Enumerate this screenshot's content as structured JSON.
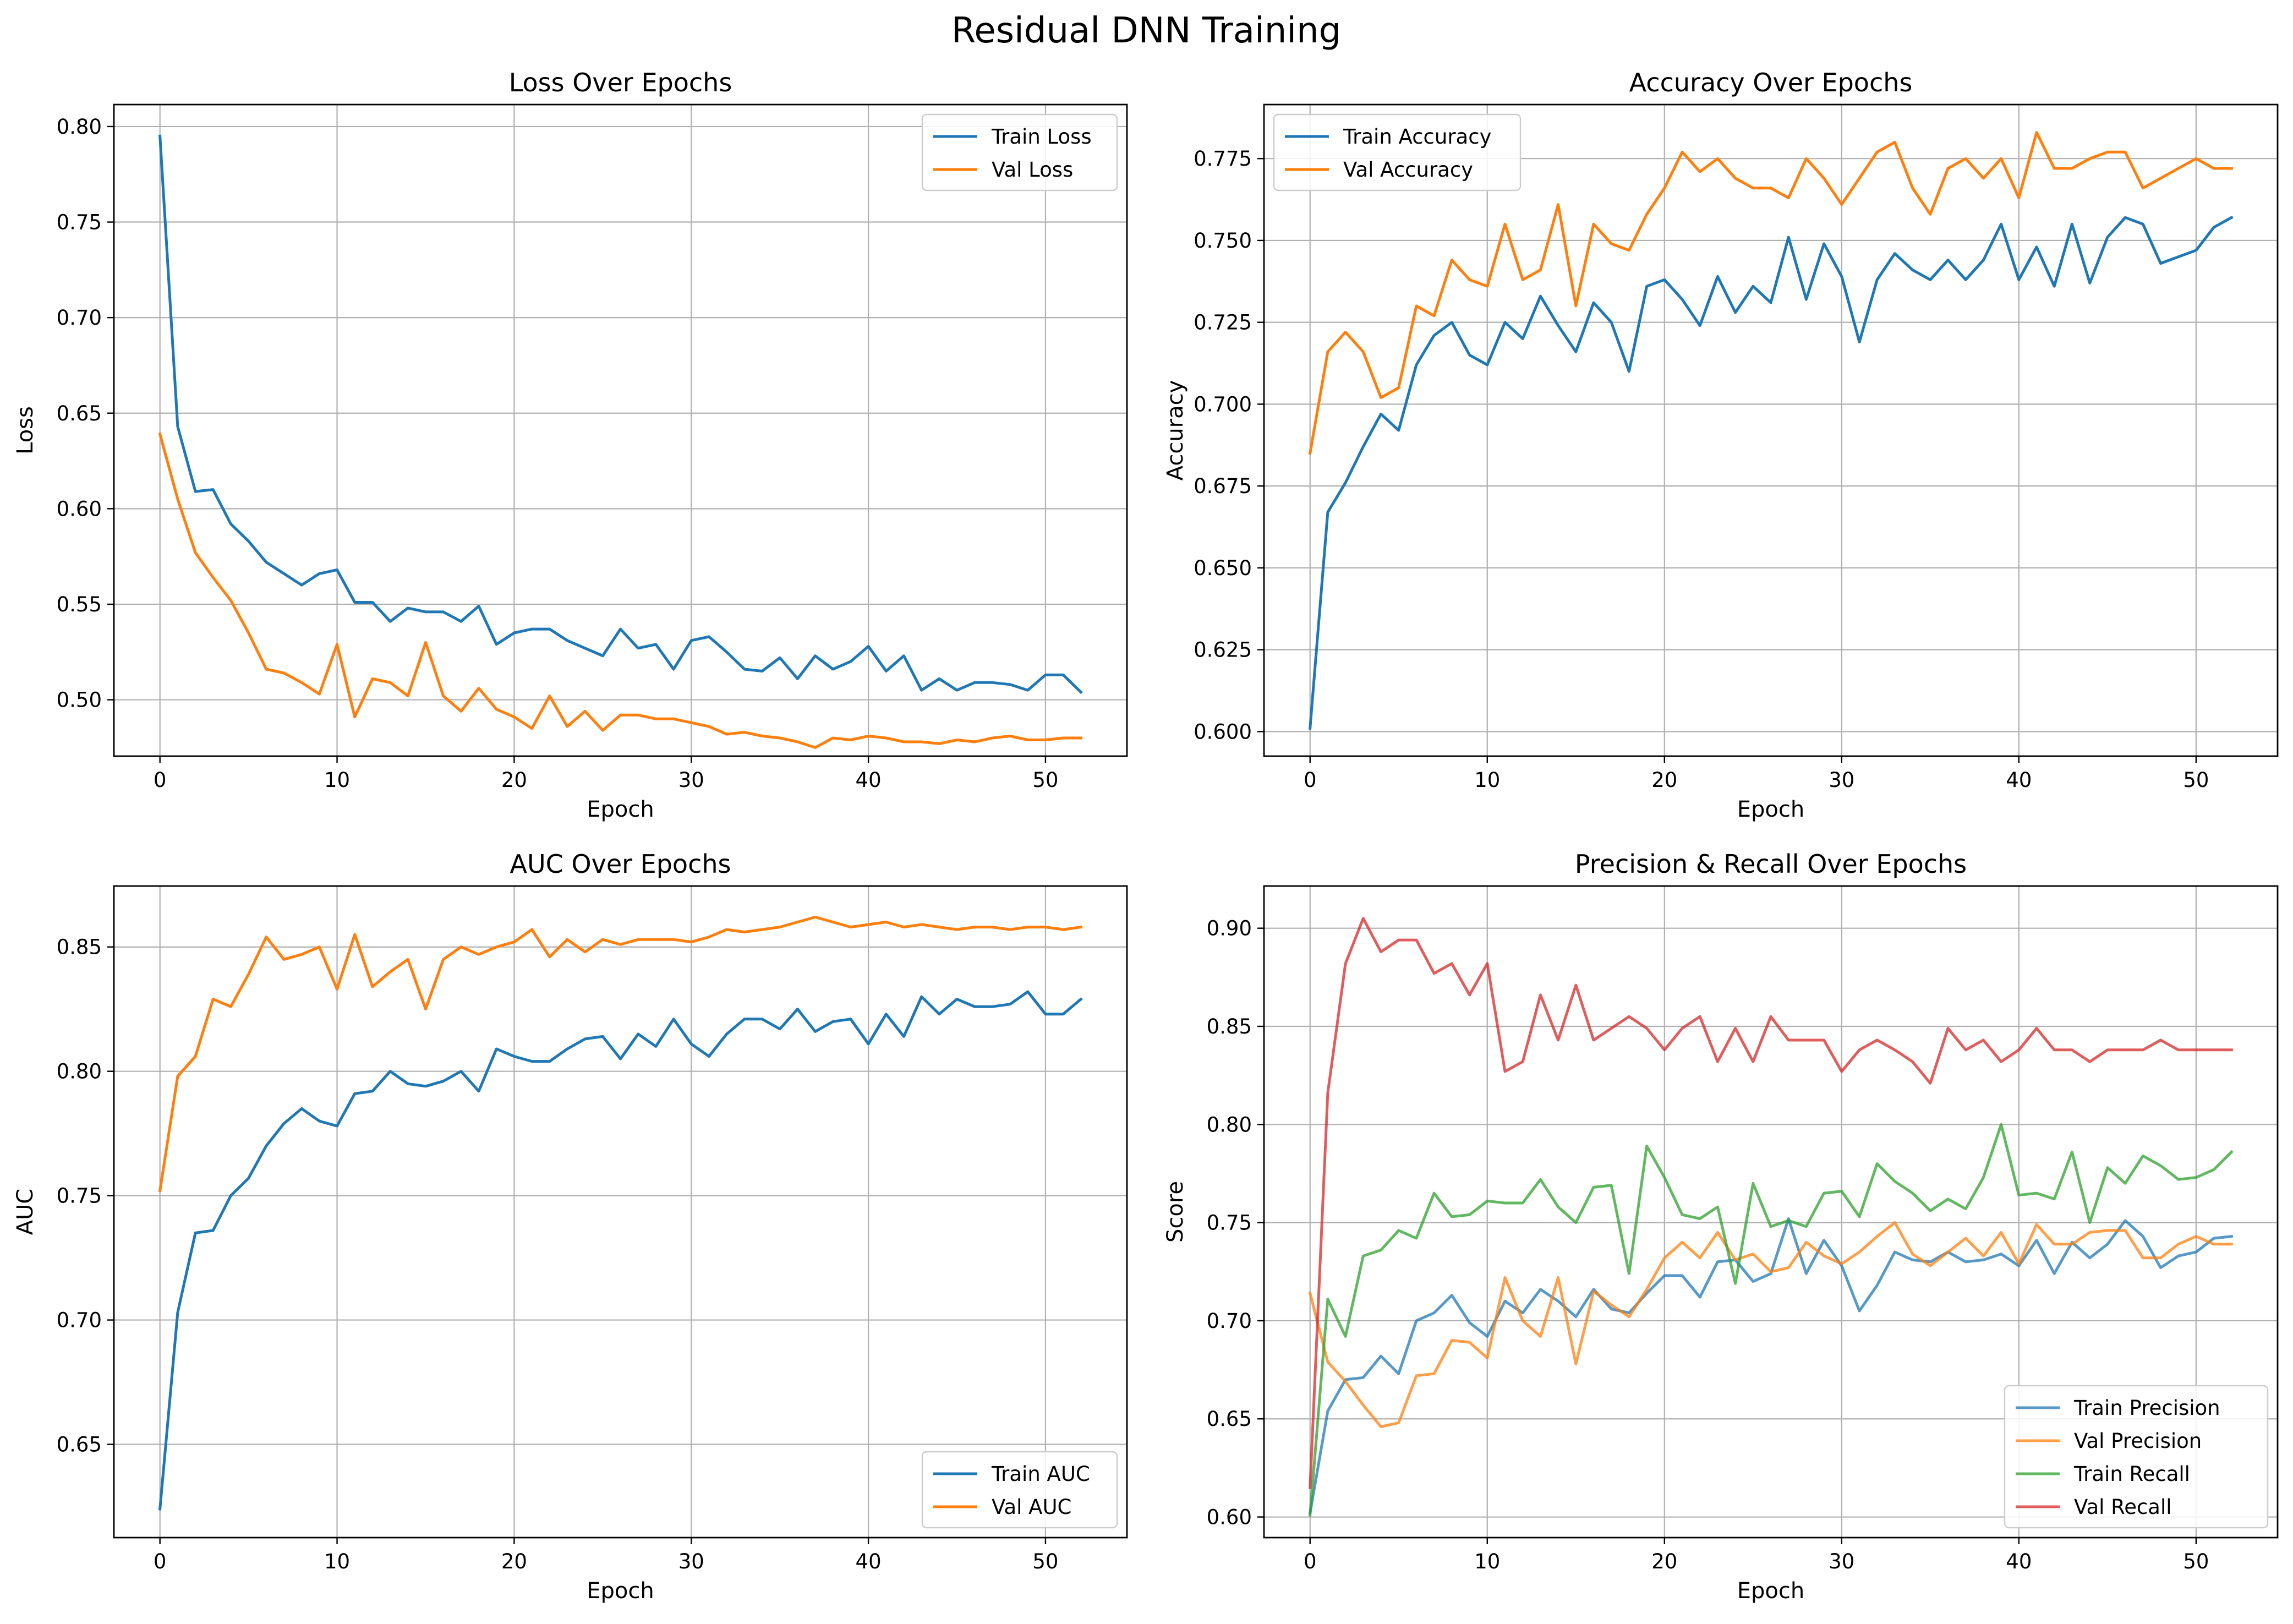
{
  "figure_title": "Residual DNN Training",
  "colors": {
    "blue": "#1f77b4",
    "orange": "#ff7f0e",
    "green": "#2ca02c",
    "red": "#d62728",
    "grid": "#b0b0b0",
    "axes": "#000000"
  },
  "chart_data": [
    {
      "id": "loss",
      "type": "line",
      "title": "Loss Over Epochs",
      "xlabel": "Epoch",
      "ylabel": "Loss",
      "xlim": [
        -2.6,
        54.6
      ],
      "ylim": [
        0.4705,
        0.8115
      ],
      "xticks": [
        0,
        10,
        20,
        30,
        40,
        50
      ],
      "yticks": [
        0.5,
        0.55,
        0.6,
        0.65,
        0.7,
        0.75,
        0.8
      ],
      "grid": true,
      "legend_position": "top-right",
      "series": [
        {
          "name": "Train Loss",
          "color": "#1f77b4",
          "values": [
            0.795,
            0.643,
            0.609,
            0.61,
            0.592,
            0.583,
            0.572,
            0.566,
            0.56,
            0.566,
            0.568,
            0.551,
            0.551,
            0.541,
            0.548,
            0.546,
            0.546,
            0.541,
            0.549,
            0.529,
            0.535,
            0.537,
            0.537,
            0.531,
            0.527,
            0.523,
            0.537,
            0.527,
            0.529,
            0.516,
            0.531,
            0.533,
            0.525,
            0.516,
            0.515,
            0.522,
            0.511,
            0.523,
            0.516,
            0.52,
            0.528,
            0.515,
            0.523,
            0.505,
            0.511,
            0.505,
            0.509,
            0.509,
            0.508,
            0.505,
            0.513,
            0.513,
            0.504
          ]
        },
        {
          "name": "Val Loss",
          "color": "#ff7f0e",
          "values": [
            0.639,
            0.605,
            0.577,
            0.564,
            0.552,
            0.535,
            0.516,
            0.514,
            0.509,
            0.503,
            0.529,
            0.491,
            0.511,
            0.509,
            0.502,
            0.53,
            0.502,
            0.494,
            0.506,
            0.495,
            0.491,
            0.485,
            0.502,
            0.486,
            0.494,
            0.484,
            0.492,
            0.492,
            0.49,
            0.49,
            0.488,
            0.486,
            0.482,
            0.483,
            0.481,
            0.48,
            0.478,
            0.475,
            0.48,
            0.479,
            0.481,
            0.48,
            0.478,
            0.478,
            0.477,
            0.479,
            0.478,
            0.48,
            0.481,
            0.479,
            0.479,
            0.48,
            0.48
          ]
        }
      ]
    },
    {
      "id": "accuracy",
      "type": "line",
      "title": "Accuracy Over Epochs",
      "xlabel": "Epoch",
      "ylabel": "Accuracy",
      "xlim": [
        -2.6,
        54.6
      ],
      "ylim": [
        0.5925,
        0.7915
      ],
      "xticks": [
        0,
        10,
        20,
        30,
        40,
        50
      ],
      "yticks": [
        0.6,
        0.625,
        0.65,
        0.675,
        0.7,
        0.725,
        0.75,
        0.775
      ],
      "grid": true,
      "legend_position": "top-left",
      "series": [
        {
          "name": "Train Accuracy",
          "color": "#1f77b4",
          "values": [
            0.601,
            0.667,
            0.676,
            0.687,
            0.697,
            0.692,
            0.712,
            0.721,
            0.725,
            0.715,
            0.712,
            0.725,
            0.72,
            0.733,
            0.724,
            0.716,
            0.731,
            0.725,
            0.71,
            0.736,
            0.738,
            0.732,
            0.724,
            0.739,
            0.728,
            0.736,
            0.731,
            0.751,
            0.732,
            0.749,
            0.739,
            0.719,
            0.738,
            0.746,
            0.741,
            0.738,
            0.744,
            0.738,
            0.744,
            0.755,
            0.738,
            0.748,
            0.736,
            0.755,
            0.737,
            0.751,
            0.757,
            0.755,
            0.743,
            0.745,
            0.747,
            0.754,
            0.757
          ]
        },
        {
          "name": "Val Accuracy",
          "color": "#ff7f0e",
          "values": [
            0.685,
            0.716,
            0.722,
            0.716,
            0.702,
            0.705,
            0.73,
            0.727,
            0.744,
            0.738,
            0.736,
            0.755,
            0.738,
            0.741,
            0.761,
            0.73,
            0.755,
            0.749,
            0.747,
            0.758,
            0.766,
            0.777,
            0.771,
            0.775,
            0.769,
            0.766,
            0.766,
            0.763,
            0.775,
            0.769,
            0.761,
            0.769,
            0.777,
            0.78,
            0.766,
            0.758,
            0.772,
            0.775,
            0.769,
            0.775,
            0.763,
            0.783,
            0.772,
            0.772,
            0.775,
            0.777,
            0.777,
            0.766,
            0.769,
            0.772,
            0.775,
            0.772,
            0.772
          ]
        }
      ]
    },
    {
      "id": "auc",
      "type": "line",
      "title": "AUC Over Epochs",
      "xlabel": "Epoch",
      "ylabel": "AUC",
      "xlim": [
        -2.6,
        54.6
      ],
      "ylim": [
        0.6125,
        0.8745
      ],
      "xticks": [
        0,
        10,
        20,
        30,
        40,
        50
      ],
      "yticks": [
        0.65,
        0.7,
        0.75,
        0.8,
        0.85
      ],
      "grid": true,
      "legend_position": "bottom-right",
      "series": [
        {
          "name": "Train AUC",
          "color": "#1f77b4",
          "values": [
            0.624,
            0.703,
            0.735,
            0.736,
            0.75,
            0.757,
            0.77,
            0.779,
            0.785,
            0.78,
            0.778,
            0.791,
            0.792,
            0.8,
            0.795,
            0.794,
            0.796,
            0.8,
            0.792,
            0.809,
            0.806,
            0.804,
            0.804,
            0.809,
            0.813,
            0.814,
            0.805,
            0.815,
            0.81,
            0.821,
            0.811,
            0.806,
            0.815,
            0.821,
            0.821,
            0.817,
            0.825,
            0.816,
            0.82,
            0.821,
            0.811,
            0.823,
            0.814,
            0.83,
            0.823,
            0.829,
            0.826,
            0.826,
            0.827,
            0.832,
            0.823,
            0.823,
            0.829
          ]
        },
        {
          "name": "Val AUC",
          "color": "#ff7f0e",
          "values": [
            0.752,
            0.798,
            0.806,
            0.829,
            0.826,
            0.839,
            0.854,
            0.845,
            0.847,
            0.85,
            0.833,
            0.855,
            0.834,
            0.84,
            0.845,
            0.825,
            0.845,
            0.85,
            0.847,
            0.85,
            0.852,
            0.857,
            0.846,
            0.853,
            0.848,
            0.853,
            0.851,
            0.853,
            0.853,
            0.853,
            0.852,
            0.854,
            0.857,
            0.856,
            0.857,
            0.858,
            0.86,
            0.862,
            0.86,
            0.858,
            0.859,
            0.86,
            0.858,
            0.859,
            0.858,
            0.857,
            0.858,
            0.858,
            0.857,
            0.858,
            0.858,
            0.857,
            0.858
          ]
        }
      ]
    },
    {
      "id": "precision_recall",
      "type": "line",
      "title": "Precision & Recall Over Epochs",
      "xlabel": "Epoch",
      "ylabel": "Score",
      "xlim": [
        -2.6,
        54.6
      ],
      "ylim": [
        0.5895,
        0.9215
      ],
      "xticks": [
        0,
        10,
        20,
        30,
        40,
        50
      ],
      "yticks": [
        0.6,
        0.65,
        0.7,
        0.75,
        0.8,
        0.85,
        0.9
      ],
      "grid": true,
      "legend_position": "bottom-right",
      "series": [
        {
          "name": "Train Precision",
          "color": "#1f77b4",
          "values": [
            0.602,
            0.654,
            0.67,
            0.671,
            0.682,
            0.673,
            0.7,
            0.704,
            0.713,
            0.699,
            0.692,
            0.71,
            0.704,
            0.716,
            0.71,
            0.702,
            0.716,
            0.706,
            0.704,
            0.714,
            0.723,
            0.723,
            0.712,
            0.73,
            0.731,
            0.72,
            0.724,
            0.752,
            0.724,
            0.741,
            0.728,
            0.705,
            0.718,
            0.735,
            0.731,
            0.73,
            0.735,
            0.73,
            0.731,
            0.734,
            0.728,
            0.741,
            0.724,
            0.74,
            0.732,
            0.739,
            0.751,
            0.743,
            0.727,
            0.733,
            0.735,
            0.742,
            0.743
          ]
        },
        {
          "name": "Val Precision",
          "color": "#ff7f0e",
          "values": [
            0.714,
            0.679,
            0.669,
            0.657,
            0.646,
            0.648,
            0.672,
            0.673,
            0.69,
            0.689,
            0.681,
            0.722,
            0.7,
            0.692,
            0.722,
            0.678,
            0.715,
            0.708,
            0.702,
            0.716,
            0.732,
            0.74,
            0.732,
            0.745,
            0.731,
            0.734,
            0.725,
            0.727,
            0.74,
            0.733,
            0.729,
            0.735,
            0.743,
            0.75,
            0.734,
            0.728,
            0.735,
            0.742,
            0.733,
            0.745,
            0.729,
            0.749,
            0.739,
            0.739,
            0.745,
            0.746,
            0.746,
            0.732,
            0.732,
            0.739,
            0.743,
            0.739,
            0.739
          ]
        },
        {
          "name": "Train Recall",
          "color": "#2ca02c",
          "values": [
            0.601,
            0.711,
            0.692,
            0.733,
            0.736,
            0.746,
            0.742,
            0.765,
            0.753,
            0.754,
            0.761,
            0.76,
            0.76,
            0.772,
            0.758,
            0.75,
            0.768,
            0.769,
            0.724,
            0.789,
            0.773,
            0.754,
            0.752,
            0.758,
            0.719,
            0.77,
            0.748,
            0.751,
            0.748,
            0.765,
            0.766,
            0.753,
            0.78,
            0.771,
            0.765,
            0.756,
            0.762,
            0.757,
            0.773,
            0.8,
            0.764,
            0.765,
            0.762,
            0.786,
            0.75,
            0.778,
            0.77,
            0.784,
            0.779,
            0.772,
            0.773,
            0.777,
            0.786
          ]
        },
        {
          "name": "Val Recall",
          "color": "#d62728",
          "values": [
            0.615,
            0.816,
            0.882,
            0.905,
            0.888,
            0.894,
            0.894,
            0.877,
            0.882,
            0.866,
            0.882,
            0.827,
            0.832,
            0.866,
            0.843,
            0.871,
            0.843,
            0.849,
            0.855,
            0.849,
            0.838,
            0.849,
            0.855,
            0.832,
            0.849,
            0.832,
            0.855,
            0.843,
            0.843,
            0.843,
            0.827,
            0.838,
            0.843,
            0.838,
            0.832,
            0.821,
            0.849,
            0.838,
            0.843,
            0.832,
            0.838,
            0.849,
            0.838,
            0.838,
            0.832,
            0.838,
            0.838,
            0.838,
            0.843,
            0.838,
            0.838,
            0.838,
            0.838
          ]
        }
      ]
    }
  ]
}
